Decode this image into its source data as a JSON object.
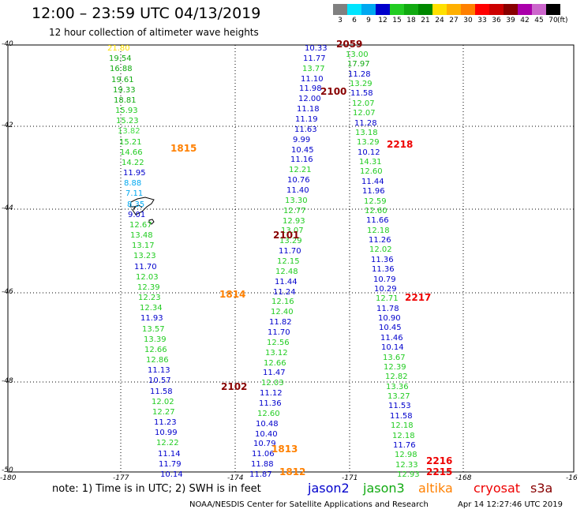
{
  "title": "12:00 – 23:59 UTC 04/13/2019",
  "subtitle": "12 hour collection of altimeter wave heights",
  "colorbar": {
    "labels": [
      "3",
      "6",
      "9",
      "12",
      "15",
      "18",
      "21",
      "24",
      "27",
      "30",
      "33",
      "36",
      "39",
      "42",
      "45",
      "70"
    ],
    "colors": [
      "#808080",
      "#00e5ff",
      "#00a8f0",
      "#0000cc",
      "#22cc22",
      "#11aa11",
      "#008800",
      "#ffe000",
      "#ffb000",
      "#ff8000",
      "#ff0000",
      "#cc0000",
      "#880000",
      "#aa00aa",
      "#cc66cc",
      "#000000"
    ],
    "unit": "(ft)"
  },
  "axes": {
    "lat_labels": [
      "-40",
      "-42",
      "-44",
      "-46",
      "-48",
      "-50"
    ],
    "lon_labels": [
      "-180",
      "-177",
      "-174",
      "-171",
      "-168",
      "-16"
    ]
  },
  "map_icons": [
    "island-icon",
    "islet-icon"
  ],
  "tracks": [
    {
      "satellite": "jason3",
      "points": [
        {
          "v": "21.80",
          "c": "#ffe000"
        },
        {
          "v": "19.54",
          "c": "#11aa11"
        },
        {
          "v": "16.88",
          "c": "#11aa11"
        },
        {
          "v": "19.61",
          "c": "#11aa11"
        },
        {
          "v": "19.33",
          "c": "#11aa11"
        },
        {
          "v": "18.81",
          "c": "#11aa11"
        },
        {
          "v": "15.93",
          "c": "#22cc22"
        },
        {
          "v": "15.23",
          "c": "#22cc22"
        },
        {
          "v": "13.82",
          "c": "#44dd44"
        },
        {
          "v": "15.21",
          "c": "#22cc22"
        },
        {
          "v": "14.66",
          "c": "#22cc22"
        },
        {
          "v": "14.22",
          "c": "#22cc22"
        },
        {
          "v": "11.95",
          "c": "#0000cc"
        },
        {
          "v": "8.88",
          "c": "#00a8f0"
        },
        {
          "v": "7.11",
          "c": "#00a8f0"
        },
        {
          "v": "8.35",
          "c": "#00a8f0"
        },
        {
          "v": "9.01",
          "c": "#0000cc"
        },
        {
          "v": "12.67",
          "c": "#22cc22"
        },
        {
          "v": "13.48",
          "c": "#22cc22"
        },
        {
          "v": "13.17",
          "c": "#22cc22"
        },
        {
          "v": "13.23",
          "c": "#22cc22"
        },
        {
          "v": "11.70",
          "c": "#0000cc"
        },
        {
          "v": "12.03",
          "c": "#22cc22"
        },
        {
          "v": "12.39",
          "c": "#22cc22"
        },
        {
          "v": "12.23",
          "c": "#22cc22"
        },
        {
          "v": "12.34",
          "c": "#22cc22"
        },
        {
          "v": "11.93",
          "c": "#0000cc"
        },
        {
          "v": "13.57",
          "c": "#22cc22"
        },
        {
          "v": "13.39",
          "c": "#22cc22"
        },
        {
          "v": "12.66",
          "c": "#22cc22"
        },
        {
          "v": "12.86",
          "c": "#22cc22"
        },
        {
          "v": "11.13",
          "c": "#0000cc"
        },
        {
          "v": "10.57",
          "c": "#0000cc"
        },
        {
          "v": "11.58",
          "c": "#0000cc"
        },
        {
          "v": "12.02",
          "c": "#22cc22"
        },
        {
          "v": "12.27",
          "c": "#22cc22"
        },
        {
          "v": "11.23",
          "c": "#0000cc"
        },
        {
          "v": "10.99",
          "c": "#0000cc"
        },
        {
          "v": "12.22",
          "c": "#22cc22"
        },
        {
          "v": "11.14",
          "c": "#0000cc"
        },
        {
          "v": "11.79",
          "c": "#0000cc"
        },
        {
          "v": "10.14",
          "c": "#0000cc"
        }
      ]
    },
    {
      "satellite": "jason3",
      "points": [
        {
          "v": "10.33",
          "c": "#0000cc"
        },
        {
          "v": "11.77",
          "c": "#0000cc"
        },
        {
          "v": "13.77",
          "c": "#22cc22"
        },
        {
          "v": "11.10",
          "c": "#0000cc"
        },
        {
          "v": "11.98",
          "c": "#0000cc"
        },
        {
          "v": "12.00",
          "c": "#0000cc"
        },
        {
          "v": "11.18",
          "c": "#0000cc"
        },
        {
          "v": "11.19",
          "c": "#0000cc"
        },
        {
          "v": "11.63",
          "c": "#0000cc"
        },
        {
          "v": "9.99",
          "c": "#0000cc"
        },
        {
          "v": "10.45",
          "c": "#0000cc"
        },
        {
          "v": "11.16",
          "c": "#0000cc"
        },
        {
          "v": "12.21",
          "c": "#22cc22"
        },
        {
          "v": "10.76",
          "c": "#0000cc"
        },
        {
          "v": "11.40",
          "c": "#0000cc"
        },
        {
          "v": "13.30",
          "c": "#22cc22"
        },
        {
          "v": "12.77",
          "c": "#22cc22"
        },
        {
          "v": "12.93",
          "c": "#22cc22"
        },
        {
          "v": "13.07",
          "c": "#22cc22"
        },
        {
          "v": "13.29",
          "c": "#22cc22"
        },
        {
          "v": "11.70",
          "c": "#0000cc"
        },
        {
          "v": "12.15",
          "c": "#22cc22"
        },
        {
          "v": "12.48",
          "c": "#22cc22"
        },
        {
          "v": "11.44",
          "c": "#0000cc"
        },
        {
          "v": "11.24",
          "c": "#0000cc"
        },
        {
          "v": "12.16",
          "c": "#22cc22"
        },
        {
          "v": "12.40",
          "c": "#22cc22"
        },
        {
          "v": "11.82",
          "c": "#0000cc"
        },
        {
          "v": "11.70",
          "c": "#0000cc"
        },
        {
          "v": "12.56",
          "c": "#22cc22"
        },
        {
          "v": "13.12",
          "c": "#22cc22"
        },
        {
          "v": "12.66",
          "c": "#22cc22"
        },
        {
          "v": "11.47",
          "c": "#0000cc"
        },
        {
          "v": "12.03",
          "c": "#22cc22"
        },
        {
          "v": "11.12",
          "c": "#0000cc"
        },
        {
          "v": "11.36",
          "c": "#0000cc"
        },
        {
          "v": "12.60",
          "c": "#22cc22"
        },
        {
          "v": "10.48",
          "c": "#0000cc"
        },
        {
          "v": "10.40",
          "c": "#0000cc"
        },
        {
          "v": "10.79",
          "c": "#0000cc"
        },
        {
          "v": "11.06",
          "c": "#0000cc"
        },
        {
          "v": "11.88",
          "c": "#0000cc"
        },
        {
          "v": "11.87",
          "c": "#0000cc"
        }
      ]
    },
    {
      "satellite": "jason2",
      "points": [
        {
          "v": "13.00",
          "c": "#22cc22"
        },
        {
          "v": "17.97",
          "c": "#11aa11"
        },
        {
          "v": "11.28",
          "c": "#0000cc"
        },
        {
          "v": "13.29",
          "c": "#22cc22"
        },
        {
          "v": "11.58",
          "c": "#0000cc"
        },
        {
          "v": "12.07",
          "c": "#22cc22"
        },
        {
          "v": "12.07",
          "c": "#22cc22"
        },
        {
          "v": "11.28",
          "c": "#0000cc"
        },
        {
          "v": "13.18",
          "c": "#22cc22"
        },
        {
          "v": "13.29",
          "c": "#22cc22"
        },
        {
          "v": "10.12",
          "c": "#0000cc"
        },
        {
          "v": "14.31",
          "c": "#22cc22"
        },
        {
          "v": "12.60",
          "c": "#22cc22"
        },
        {
          "v": "11.44",
          "c": "#0000cc"
        },
        {
          "v": "11.96",
          "c": "#0000cc"
        },
        {
          "v": "12.59",
          "c": "#22cc22"
        },
        {
          "v": "12.60",
          "c": "#22cc22"
        },
        {
          "v": "11.66",
          "c": "#0000cc"
        },
        {
          "v": "12.18",
          "c": "#22cc22"
        },
        {
          "v": "11.26",
          "c": "#0000cc"
        },
        {
          "v": "12.02",
          "c": "#22cc22"
        },
        {
          "v": "11.36",
          "c": "#0000cc"
        },
        {
          "v": "11.36",
          "c": "#0000cc"
        },
        {
          "v": "10.79",
          "c": "#0000cc"
        },
        {
          "v": "10.29",
          "c": "#0000cc"
        },
        {
          "v": "12.71",
          "c": "#22cc22"
        },
        {
          "v": "11.78",
          "c": "#0000cc"
        },
        {
          "v": "10.90",
          "c": "#0000cc"
        },
        {
          "v": "10.45",
          "c": "#0000cc"
        },
        {
          "v": "11.46",
          "c": "#0000cc"
        },
        {
          "v": "10.14",
          "c": "#0000cc"
        },
        {
          "v": "13.67",
          "c": "#22cc22"
        },
        {
          "v": "12.39",
          "c": "#22cc22"
        },
        {
          "v": "12.82",
          "c": "#22cc22"
        },
        {
          "v": "13.36",
          "c": "#22cc22"
        },
        {
          "v": "13.27",
          "c": "#22cc22"
        },
        {
          "v": "11.53",
          "c": "#0000cc"
        },
        {
          "v": "11.58",
          "c": "#0000cc"
        },
        {
          "v": "12.18",
          "c": "#22cc22"
        },
        {
          "v": "12.18",
          "c": "#22cc22"
        },
        {
          "v": "11.76",
          "c": "#0000cc"
        },
        {
          "v": "12.98",
          "c": "#22cc22"
        },
        {
          "v": "12.33",
          "c": "#22cc22"
        },
        {
          "v": "12.93",
          "c": "#22cc22"
        }
      ]
    }
  ],
  "time_labels": [
    {
      "t": "2059",
      "c": "#880000"
    },
    {
      "t": "2100",
      "c": "#880000"
    },
    {
      "t": "1815",
      "c": "#ff8000"
    },
    {
      "t": "2218",
      "c": "#ee0000"
    },
    {
      "t": "2101",
      "c": "#880000"
    },
    {
      "t": "1814",
      "c": "#ff8000"
    },
    {
      "t": "2217",
      "c": "#ee0000"
    },
    {
      "t": "2102",
      "c": "#880000"
    },
    {
      "t": "1813",
      "c": "#ff8000"
    },
    {
      "t": "1812",
      "c": "#ff8000"
    },
    {
      "t": "2216",
      "c": "#ee0000"
    },
    {
      "t": "2215",
      "c": "#ee0000"
    }
  ],
  "note": "note:  1) Time is in UTC; 2) SWH is in feet",
  "legend": [
    {
      "name": "jason2",
      "color": "#0000cc"
    },
    {
      "name": "jason3",
      "color": "#11aa11"
    },
    {
      "name": "altika",
      "color": "#ff8000"
    },
    {
      "name": "cryosat",
      "color": "#ee0000"
    },
    {
      "name": "s3a",
      "color": "#880000"
    }
  ],
  "credit": "NOAA/NESDIS Center for Satellite Applications and Research",
  "timestamp": "Apr 14 12:27:46 UTC 2019"
}
